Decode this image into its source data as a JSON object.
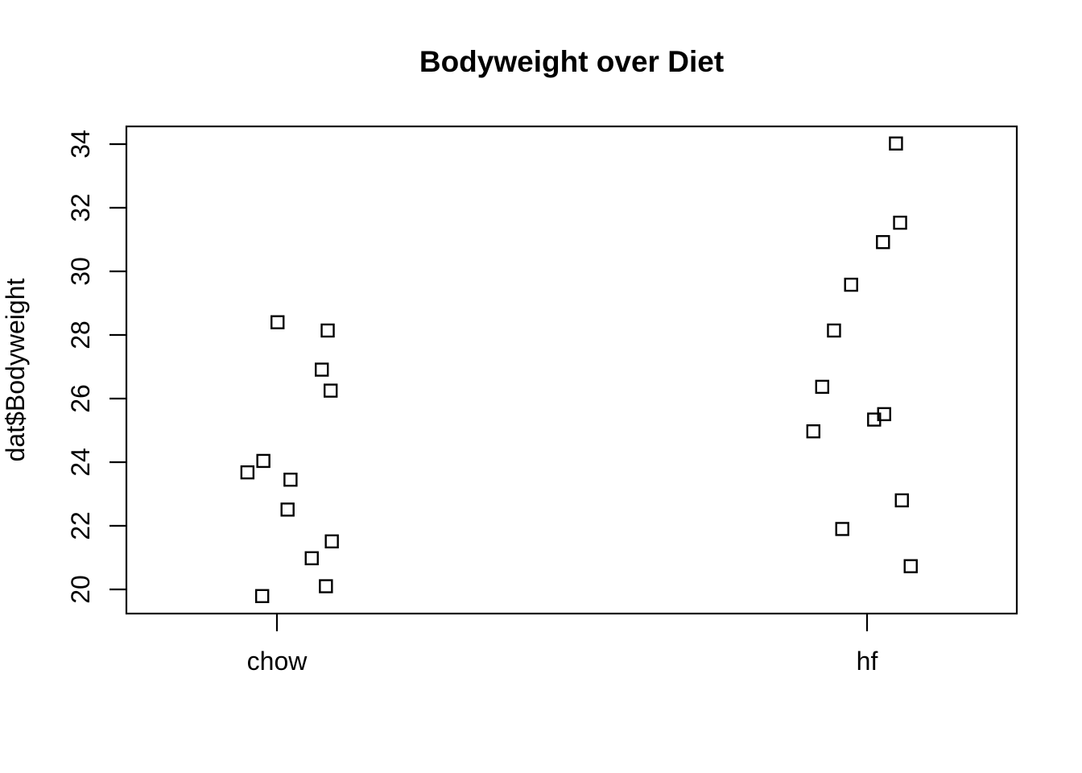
{
  "title": "Bodyweight over Diet",
  "y_axis": {
    "label": "dat$Bodyweight",
    "ticks": [
      20,
      22,
      24,
      26,
      28,
      30,
      32,
      34
    ]
  },
  "x_axis": {
    "label": "",
    "categories": [
      "chow",
      "hf"
    ]
  },
  "colors": {
    "foreground": "#000000",
    "background": "#ffffff"
  },
  "chart_data": {
    "type": "scatter",
    "title": "Bodyweight over Diet",
    "xlabel": "",
    "ylabel": "dat$Bodyweight",
    "x_categories": [
      "chow",
      "hf"
    ],
    "y_ticks": [
      20,
      22,
      24,
      26,
      28,
      30,
      32,
      34
    ],
    "ylim": [
      19.2,
      34.6
    ],
    "grid": false,
    "legend": "none",
    "marker": "open-square",
    "series": [
      {
        "name": "chow",
        "category_index": 1,
        "points": [
          {
            "x": 1.093,
            "y": 21.51
          },
          {
            "x": 1.086,
            "y": 28.14
          },
          {
            "x": 0.977,
            "y": 24.04
          },
          {
            "x": 1.023,
            "y": 23.45
          },
          {
            "x": 0.95,
            "y": 23.68
          },
          {
            "x": 0.975,
            "y": 19.79
          },
          {
            "x": 1.001,
            "y": 28.4
          },
          {
            "x": 1.059,
            "y": 20.98
          },
          {
            "x": 1.018,
            "y": 22.51
          },
          {
            "x": 1.083,
            "y": 20.1
          },
          {
            "x": 1.076,
            "y": 26.91
          },
          {
            "x": 1.091,
            "y": 26.25
          }
        ]
      },
      {
        "name": "hf",
        "category_index": 2,
        "points": [
          {
            "x": 2.029,
            "y": 25.51
          },
          {
            "x": 1.924,
            "y": 26.37
          },
          {
            "x": 2.059,
            "y": 22.8
          },
          {
            "x": 2.012,
            "y": 25.34
          },
          {
            "x": 1.909,
            "y": 24.97
          },
          {
            "x": 1.944,
            "y": 28.14
          },
          {
            "x": 1.973,
            "y": 29.58
          },
          {
            "x": 2.027,
            "y": 30.92
          },
          {
            "x": 2.049,
            "y": 34.02
          },
          {
            "x": 1.958,
            "y": 21.9
          },
          {
            "x": 2.056,
            "y": 31.53
          },
          {
            "x": 2.074,
            "y": 20.73
          }
        ]
      }
    ]
  }
}
